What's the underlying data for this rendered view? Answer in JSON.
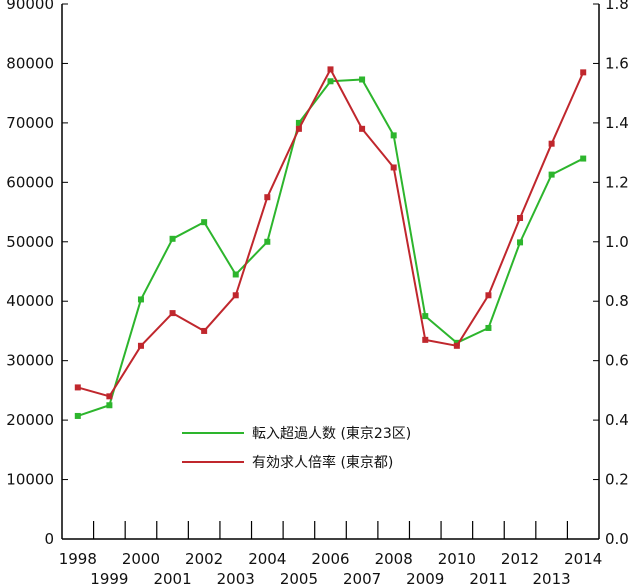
{
  "chart_data": {
    "type": "line",
    "x": [
      "1998",
      "1999",
      "2000",
      "2001",
      "2002",
      "2003",
      "2004",
      "2005",
      "2006",
      "2007",
      "2008",
      "2009",
      "2010",
      "2011",
      "2012",
      "2013",
      "2014"
    ],
    "x_tick_labels_upper": [
      "1998",
      "2000",
      "2002",
      "2004",
      "2006",
      "2008",
      "2010",
      "2012",
      "2014"
    ],
    "x_tick_labels_lower": [
      "1999",
      "2001",
      "2003",
      "2005",
      "2007",
      "2009",
      "2011",
      "2013"
    ],
    "y_left": {
      "ylim": [
        0,
        90000
      ],
      "ticks": [
        "0",
        "10000",
        "20000",
        "30000",
        "40000",
        "50000",
        "60000",
        "70000",
        "80000",
        "90000"
      ]
    },
    "y_right": {
      "ylim": [
        0,
        1.8
      ],
      "ticks": [
        "0.0",
        "0.2",
        "0.4",
        "0.6",
        "0.8",
        "1.0",
        "1.2",
        "1.4",
        "1.6",
        "1.8"
      ]
    },
    "grid": false,
    "legend_position": "bottom-center",
    "series": [
      {
        "name": "転入超過人数 (東京23区)",
        "axis": "left",
        "color": "#2db52d",
        "values": [
          20700,
          22500,
          40300,
          50500,
          53300,
          44500,
          50000,
          70000,
          77000,
          77300,
          67900,
          37500,
          33000,
          35500,
          49900,
          61300,
          64000
        ]
      },
      {
        "name": "有効求人倍率 (東京都)",
        "axis": "right",
        "color": "#c0272d",
        "values": [
          0.51,
          0.48,
          0.65,
          0.76,
          0.7,
          0.82,
          1.15,
          1.38,
          1.58,
          1.38,
          1.25,
          0.67,
          0.65,
          0.82,
          1.08,
          1.33,
          1.57
        ]
      }
    ]
  }
}
